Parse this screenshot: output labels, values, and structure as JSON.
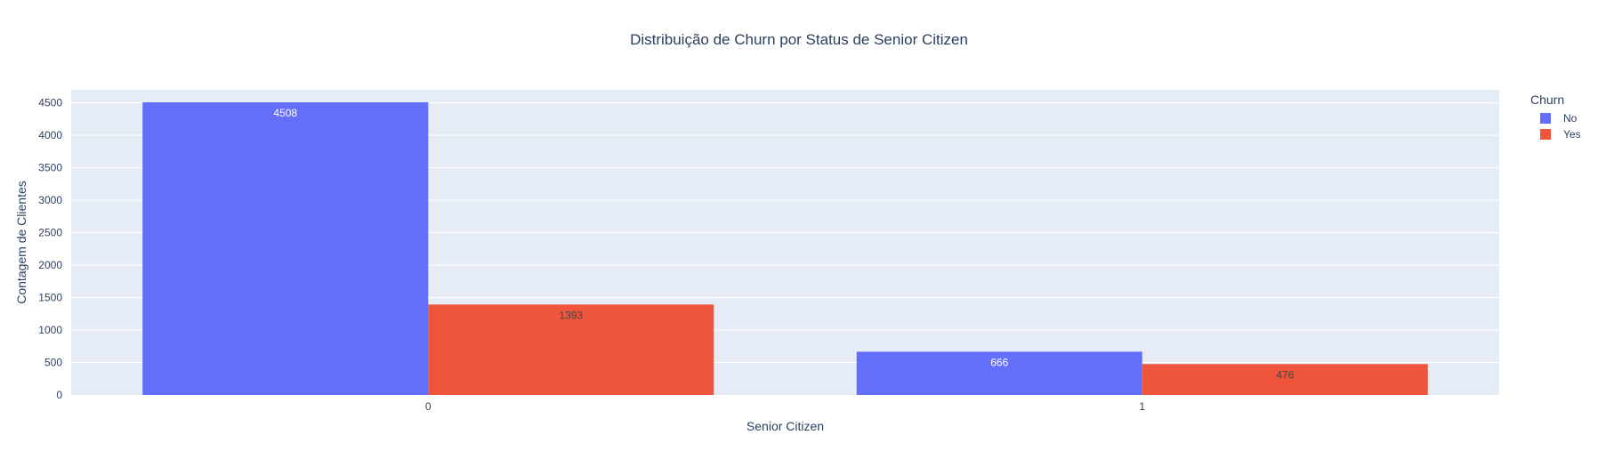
{
  "chart_data": {
    "type": "bar",
    "title": "Distribuição de Churn por Status de Senior Citizen",
    "xlabel": "Senior Citizen",
    "ylabel": "Contagem de Clientes",
    "categories": [
      "0",
      "1"
    ],
    "series": [
      {
        "name": "No",
        "values": [
          4508,
          666
        ],
        "color": "#636efa",
        "label_color": "#ffffff"
      },
      {
        "name": "Yes",
        "values": [
          1393,
          476
        ],
        "color": "#ef553b",
        "label_color": "#444444"
      }
    ],
    "ylim": [
      0,
      4700
    ],
    "yticks": [
      0,
      500,
      1000,
      1500,
      2000,
      2500,
      3000,
      3500,
      4000,
      4500
    ],
    "grid": true,
    "legend": {
      "title": "Churn",
      "position": "top-right"
    },
    "plot_bgcolor": "#e5ecf6",
    "gridcolor": "#ffffff"
  }
}
